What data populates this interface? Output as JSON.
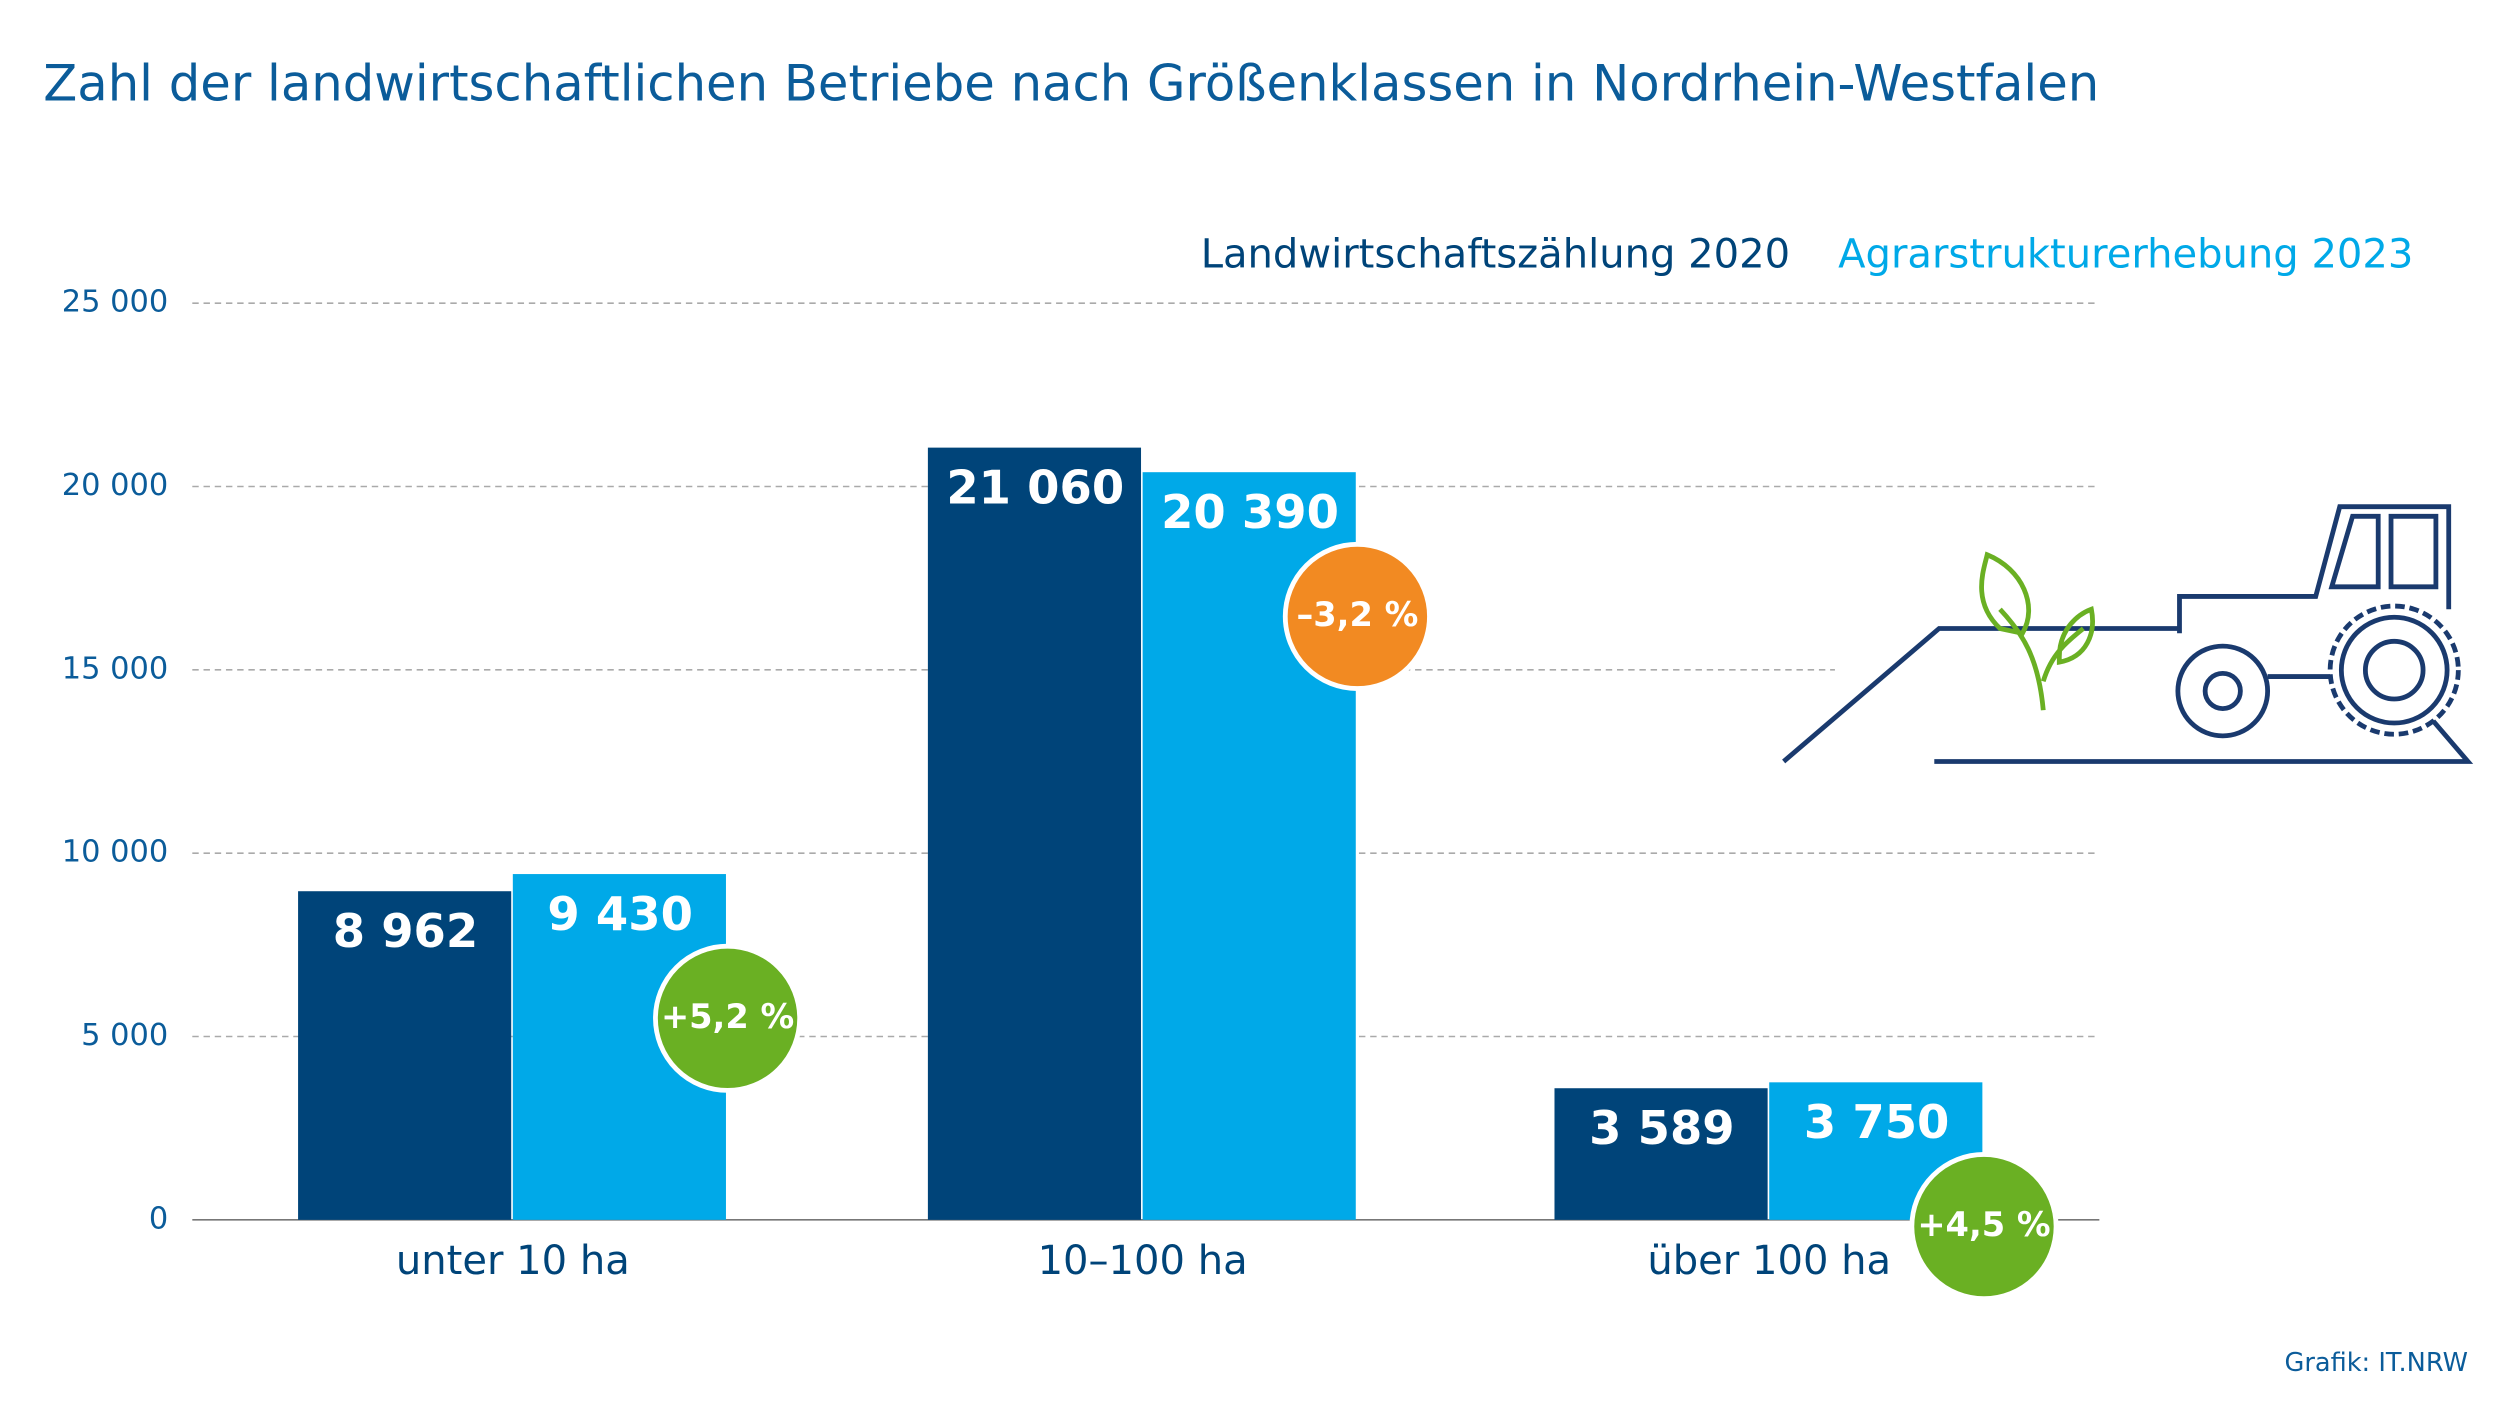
{
  "chart_data": {
    "type": "bar",
    "title": "Zahl der landwirtschaftlichen Betriebe nach Größenklassen in Nordrhein-Westfalen",
    "categories": [
      "unter 10 ha",
      "10–100 ha",
      "über 100 ha"
    ],
    "series": [
      {
        "name": "Landwirtschaftszählung 2020",
        "color": "#004479",
        "values": [
          8962,
          21060,
          3589
        ],
        "value_labels": [
          "8 962",
          "21 060",
          "3 589"
        ]
      },
      {
        "name": "Agrarstrukturerhebung 2023",
        "color": "#00a9e8",
        "values": [
          9430,
          20390,
          3750
        ],
        "value_labels": [
          "9 430",
          "20 390",
          "3 750"
        ]
      }
    ],
    "changes": {
      "values": [
        5.2,
        -3.2,
        4.5
      ],
      "value_labels": [
        "+5,2 %",
        "–3,2 %",
        "+4,5 %"
      ],
      "colors": [
        "#6ab023",
        "#f28a22",
        "#6ab023"
      ]
    },
    "ylim": [
      0,
      25000
    ],
    "yticks": [
      0,
      {
        "value": 5000,
        "label": "5 000"
      },
      {
        "value": 10000,
        "label": "10 000"
      },
      {
        "value": 15000,
        "label": "15 000"
      },
      {
        "value": 20000,
        "label": "20 000"
      },
      {
        "value": 25000,
        "label": "25 000"
      }
    ],
    "grid": true,
    "source": "Grafik: IT.NRW"
  }
}
